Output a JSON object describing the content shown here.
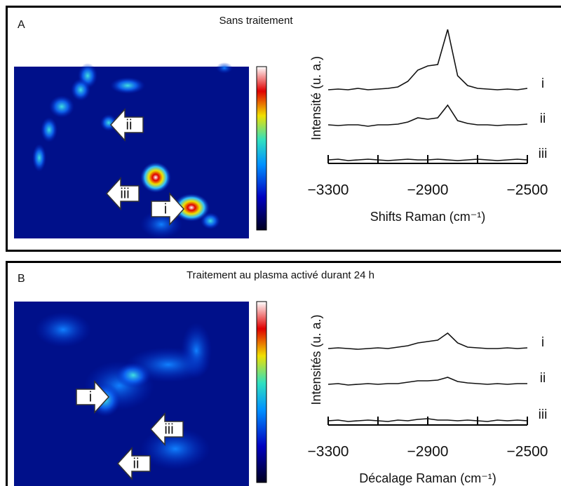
{
  "panels": [
    {
      "label": "A",
      "heatmap_labels": [
        "ii",
        "iii",
        "i"
      ]
    },
    {
      "label": "B",
      "heatmap_labels": [
        "i",
        "iii",
        "ii"
      ]
    }
  ],
  "chart_data": [
    {
      "type": "line",
      "title": "Sans traitement",
      "x_label": "Shifts Raman (cm⁻¹)",
      "y_label": "Intensité (u. a.)",
      "x": [
        -3300,
        -3260,
        -3220,
        -3180,
        -3140,
        -3100,
        -3060,
        -3020,
        -2980,
        -2940,
        -2900,
        -2860,
        -2820,
        -2780,
        -2740,
        -2700,
        -2660,
        -2620,
        -2580,
        -2540,
        -2500
      ],
      "xlim": [
        -3300,
        -2500
      ],
      "ylim": [
        0,
        10
      ],
      "xticks": [
        {
          "value": -3300,
          "label": "−3300"
        },
        {
          "value": -2900,
          "label": "−2900"
        },
        {
          "value": -2500,
          "label": "−2500"
        }
      ],
      "series": [
        {
          "name": "i",
          "color": "#111111",
          "values": [
            5.6,
            5.65,
            5.6,
            5.7,
            5.6,
            5.65,
            5.7,
            5.8,
            6.2,
            7.0,
            7.3,
            7.4,
            9.9,
            6.6,
            5.9,
            5.7,
            5.65,
            5.6,
            5.65,
            5.6,
            5.7
          ]
        },
        {
          "name": "ii",
          "color": "#111111",
          "values": [
            3.1,
            3.05,
            3.1,
            3.1,
            3.0,
            3.1,
            3.1,
            3.15,
            3.3,
            3.6,
            3.5,
            3.6,
            4.5,
            3.4,
            3.2,
            3.1,
            3.1,
            3.05,
            3.1,
            3.1,
            3.15
          ]
        },
        {
          "name": "iii",
          "color": "#111111",
          "values": [
            0.6,
            0.65,
            0.55,
            0.6,
            0.65,
            0.6,
            0.55,
            0.6,
            0.65,
            0.6,
            0.6,
            0.65,
            0.6,
            0.55,
            0.6,
            0.65,
            0.6,
            0.55,
            0.6,
            0.65,
            0.6
          ]
        }
      ]
    },
    {
      "type": "line",
      "title": "Traitement au plasma activé durant 24 h",
      "x_label": "Décalage Raman (cm⁻¹)",
      "y_label": "Intensités (u. a.)",
      "x": [
        -3300,
        -3260,
        -3220,
        -3180,
        -3140,
        -3100,
        -3060,
        -3020,
        -2980,
        -2940,
        -2900,
        -2860,
        -2820,
        -2780,
        -2740,
        -2700,
        -2660,
        -2620,
        -2580,
        -2540,
        -2500
      ],
      "xlim": [
        -3300,
        -2500
      ],
      "ylim": [
        0,
        10
      ],
      "xticks": [
        {
          "value": -3300,
          "label": "−3300"
        },
        {
          "value": -2900,
          "label": "−2900"
        },
        {
          "value": -2500,
          "label": "−2500"
        }
      ],
      "series": [
        {
          "name": "i",
          "color": "#111111",
          "values": [
            5.8,
            5.85,
            5.8,
            5.75,
            5.8,
            5.85,
            5.8,
            5.9,
            6.0,
            6.2,
            6.3,
            6.4,
            6.9,
            6.2,
            5.9,
            5.85,
            5.8,
            5.8,
            5.85,
            5.8,
            5.85
          ]
        },
        {
          "name": "ii",
          "color": "#111111",
          "values": [
            3.25,
            3.3,
            3.2,
            3.25,
            3.3,
            3.25,
            3.3,
            3.3,
            3.4,
            3.5,
            3.5,
            3.55,
            3.75,
            3.45,
            3.35,
            3.3,
            3.25,
            3.3,
            3.25,
            3.3,
            3.3
          ]
        },
        {
          "name": "iii",
          "color": "#111111",
          "values": [
            0.65,
            0.7,
            0.6,
            0.65,
            0.7,
            0.65,
            0.6,
            0.7,
            0.65,
            0.75,
            0.8,
            0.7,
            0.7,
            0.65,
            0.7,
            0.65,
            0.6,
            0.7,
            0.65,
            0.7,
            0.65
          ]
        }
      ]
    }
  ]
}
